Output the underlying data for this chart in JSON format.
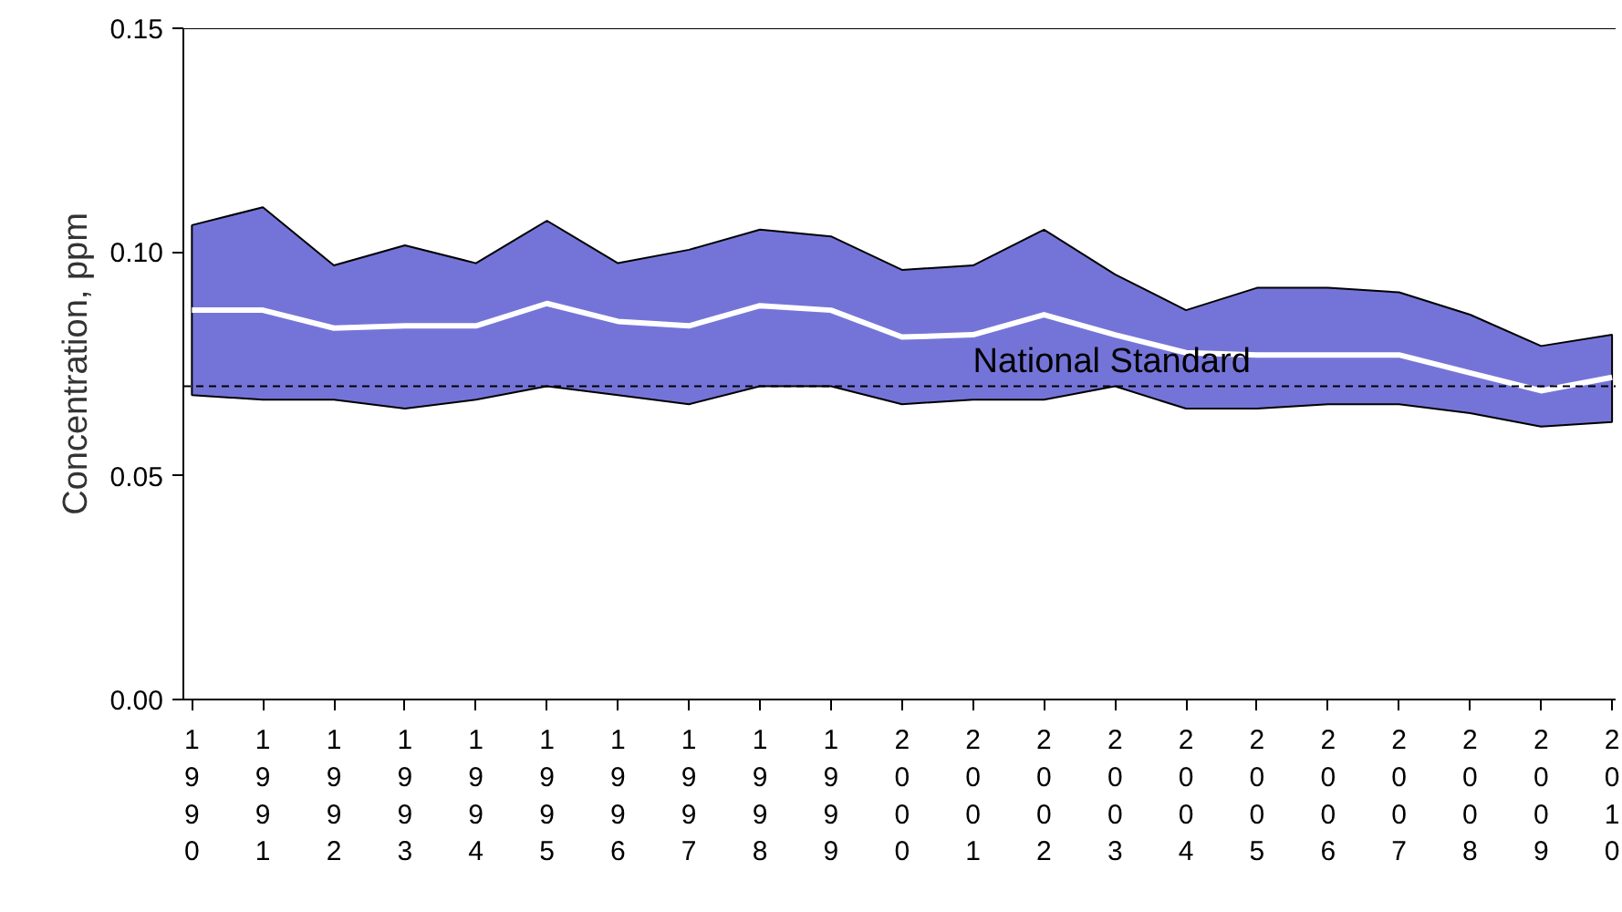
{
  "chart_data": {
    "type": "line",
    "ylabel": "Concentration, ppm",
    "categories": [
      "1990",
      "1991",
      "1992",
      "1993",
      "1994",
      "1995",
      "1996",
      "1997",
      "1998",
      "1999",
      "2000",
      "2001",
      "2002",
      "2003",
      "2004",
      "2005",
      "2006",
      "2007",
      "2008",
      "2009",
      "2010"
    ],
    "series": [
      {
        "color": "#ffffff",
        "values": [
          0.087,
          0.087,
          0.083,
          0.0835,
          0.0835,
          0.0885,
          0.0845,
          0.0835,
          0.088,
          0.087,
          0.081,
          0.0815,
          0.086,
          0.0815,
          0.0775,
          0.077,
          0.077,
          0.077,
          0.073,
          0.069,
          0.072
        ],
        "lower": [
          0.068,
          0.067,
          0.067,
          0.065,
          0.067,
          0.07,
          0.068,
          0.066,
          0.07,
          0.07,
          0.066,
          0.067,
          0.067,
          0.07,
          0.065,
          0.065,
          0.066,
          0.066,
          0.064,
          0.061,
          0.062
        ],
        "upper": [
          0.106,
          0.11,
          0.097,
          0.1015,
          0.0975,
          0.107,
          0.0975,
          0.1005,
          0.105,
          0.1035,
          0.096,
          0.097,
          0.105,
          0.095,
          0.087,
          0.092,
          0.092,
          0.091,
          0.086,
          0.079,
          0.0815
        ]
      }
    ],
    "ylim": [
      0,
      0.15
    ],
    "yticks": [
      {
        "value": 0,
        "label": "0.00"
      },
      {
        "value": 0.05,
        "label": "0.05"
      },
      {
        "value": 0.1,
        "label": "0.10"
      },
      {
        "value": 0.15,
        "label": "0.15"
      }
    ],
    "ref_lines": [
      {
        "axis": "y",
        "value": 0.07,
        "label": "National Standard",
        "color": "#000000",
        "line_style": "dashed"
      }
    ],
    "grid": false
  }
}
